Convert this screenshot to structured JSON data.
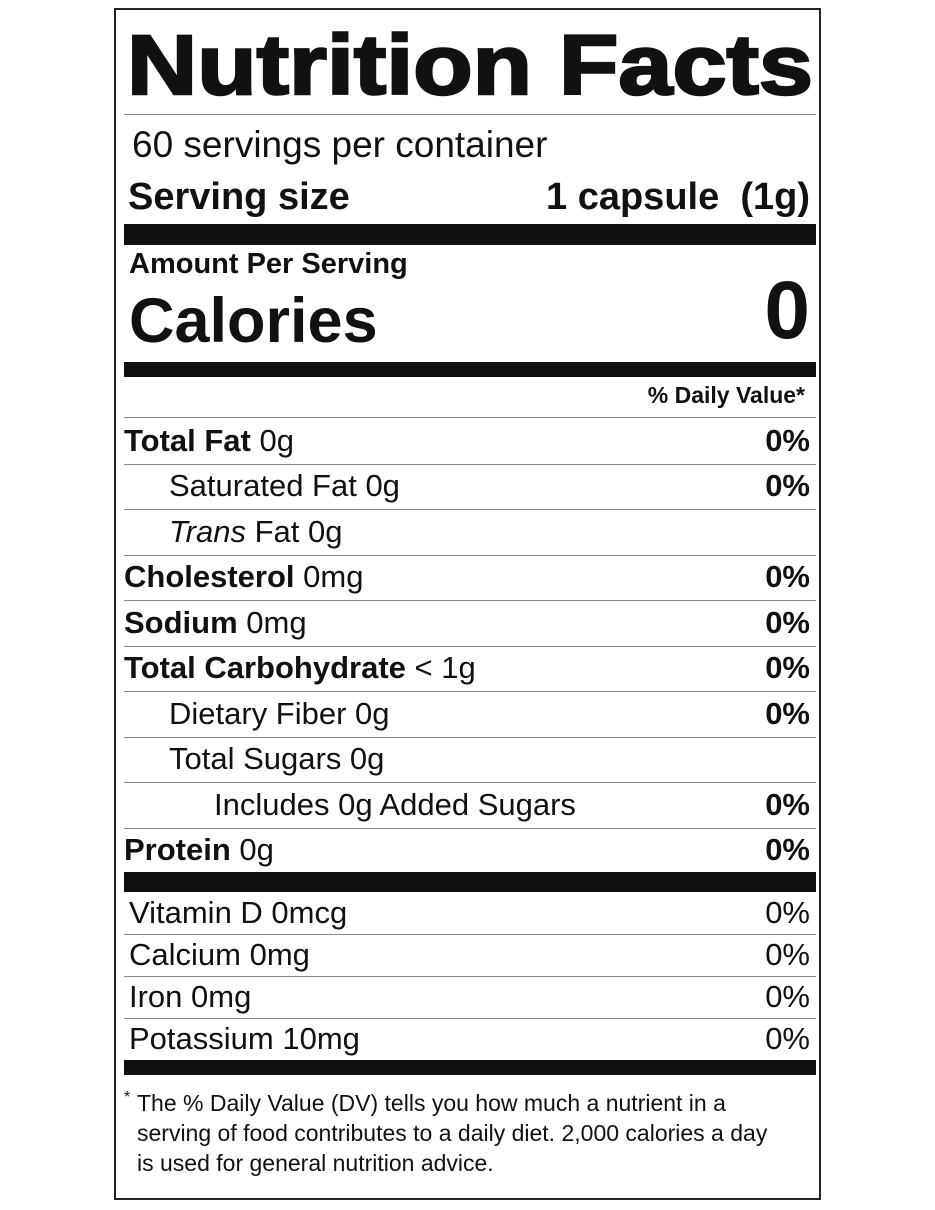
{
  "header": {
    "title": "Nutrition Facts",
    "servings": "60 servings per container",
    "serving_size_label": "Serving size",
    "serving_size": "1 capsule  (1g)"
  },
  "calories": {
    "label_top": "Amount Per Serving",
    "label": "Calories",
    "value": 0
  },
  "daily_value_header": "% Daily Value*",
  "nutrients": [
    {
      "name": "Total Fat",
      "amount": "0g",
      "dv": "0%",
      "sub": [
        {
          "label": "Saturated Fat 0g",
          "dv": "0%"
        },
        {
          "italic": "Trans",
          "label": "Fat 0g"
        }
      ]
    },
    {
      "name": "Cholesterol",
      "amount": "0mg",
      "dv": "0%"
    },
    {
      "name": "Sodium",
      "amount": "0mg",
      "dv": "0%"
    },
    {
      "name": "Total Carbohydrate",
      "amount": "< 1g",
      "dv": "0%",
      "sub": [
        {
          "label": "Dietary Fiber 0g",
          "dv": "0%"
        },
        {
          "label": "Total Sugars 0g",
          "sub": [
            {
              "label": "Includes 0g Added Sugars",
              "dv": "0%"
            }
          ]
        }
      ]
    },
    {
      "name": "Protein",
      "amount": "0g",
      "dv": "0%"
    }
  ],
  "vitamins": [
    {
      "label": "Vitamin D 0mcg",
      "dv": "0%"
    },
    {
      "label": "Calcium 0mg",
      "dv": "0%"
    },
    {
      "label": "Iron 0mg",
      "dv": "0%"
    },
    {
      "label": "Potassium 10mg",
      "dv": "0%"
    }
  ],
  "footnote": {
    "mark": "*",
    "text": "The % Daily Value (DV) tells you how much a nutrient in a serving of food contributes to a daily diet. 2,000 calories a day is used for general nutrition advice."
  }
}
